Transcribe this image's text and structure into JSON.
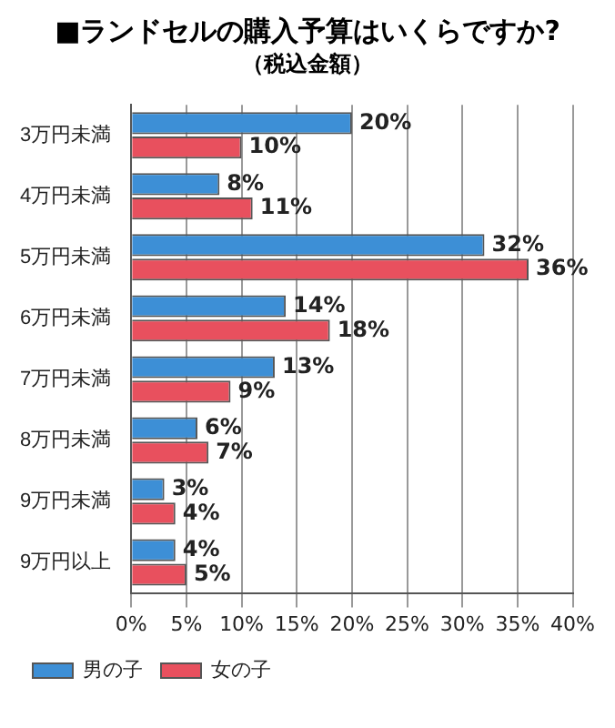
{
  "chart_data": {
    "type": "bar",
    "orientation": "horizontal",
    "title": "■ランドセルの購入予算はいくらですか?",
    "subtitle": "（税込金額）",
    "categories": [
      "3万円未満",
      "4万円未満",
      "5万円未満",
      "6万円未満",
      "7万円未満",
      "8万円未満",
      "9万円未満",
      "9万円以上"
    ],
    "series": [
      {
        "name": "男の子",
        "color": "#3d8fd6",
        "values": [
          20,
          8,
          32,
          14,
          13,
          6,
          3,
          4
        ],
        "value_labels": [
          "20%",
          "8%",
          "32%",
          "14%",
          "13%",
          "6%",
          "3%",
          "4%"
        ]
      },
      {
        "name": "女の子",
        "color": "#e8505e",
        "values": [
          10,
          11,
          36,
          18,
          9,
          7,
          4,
          5
        ],
        "value_labels": [
          "10%",
          "11%",
          "36%",
          "18%",
          "9%",
          "7%",
          "4%",
          "5%"
        ]
      }
    ],
    "xlim": [
      0,
      40
    ],
    "xticks": [
      {
        "value": 0,
        "label": "0%"
      },
      {
        "value": 5,
        "label": "5%"
      },
      {
        "value": 10,
        "label": "10%"
      },
      {
        "value": 15,
        "label": "15%"
      },
      {
        "value": 20,
        "label": "20%"
      },
      {
        "value": 25,
        "label": "25%"
      },
      {
        "value": 30,
        "label": "30%"
      },
      {
        "value": 35,
        "label": "35%"
      },
      {
        "value": 40,
        "label": "40%"
      }
    ],
    "grid": "x",
    "legend": "bottom left"
  }
}
